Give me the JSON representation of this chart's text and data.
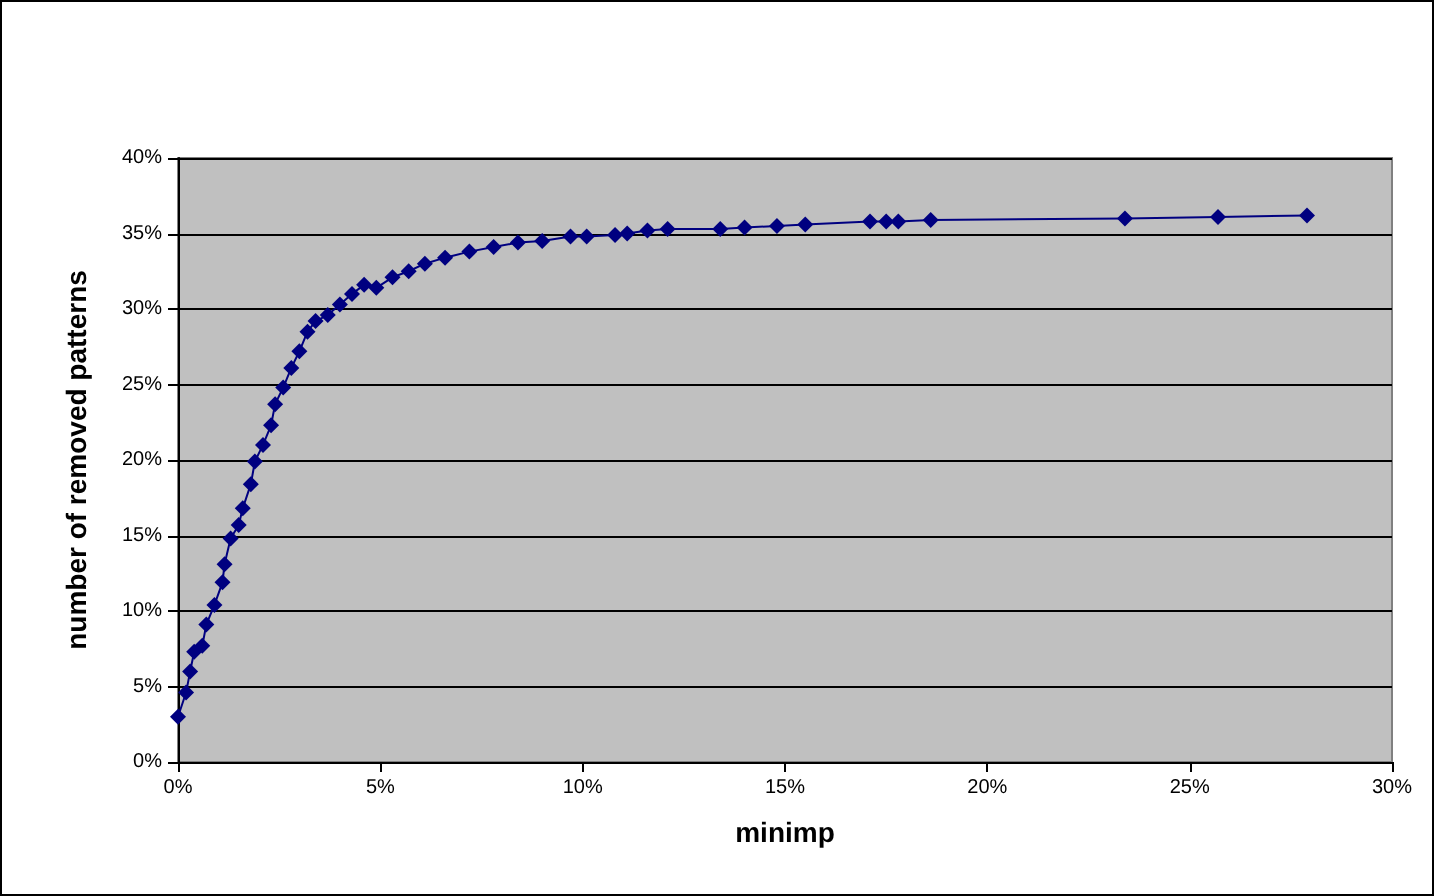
{
  "chart_data": {
    "type": "line",
    "xlabel": "minimp",
    "ylabel": "number of removed patterns",
    "x": [
      0,
      0.2,
      0.3,
      0.4,
      0.6,
      0.7,
      0.9,
      1.1,
      1.15,
      1.3,
      1.5,
      1.6,
      1.8,
      1.9,
      2.1,
      2.3,
      2.4,
      2.6,
      2.8,
      3.0,
      3.2,
      3.4,
      3.7,
      4.0,
      4.3,
      4.6,
      4.9,
      5.3,
      5.7,
      6.1,
      6.6,
      7.2,
      7.8,
      8.4,
      9.0,
      9.7,
      10.1,
      10.8,
      11.1,
      11.6,
      12.1,
      13.4,
      14.0,
      14.8,
      15.5,
      17.1,
      17.5,
      17.8,
      18.6,
      23.4,
      25.7,
      27.9
    ],
    "series": [
      {
        "color": "#000080",
        "values": [
          3.0,
          4.6,
          6.0,
          7.3,
          7.7,
          9.1,
          10.4,
          11.9,
          13.1,
          14.8,
          15.7,
          16.8,
          18.4,
          19.9,
          21.0,
          22.3,
          23.7,
          24.8,
          26.1,
          27.2,
          28.5,
          29.2,
          29.6,
          30.3,
          31.0,
          31.6,
          31.4,
          32.1,
          32.5,
          33.0,
          33.4,
          33.8,
          34.1,
          34.4,
          34.5,
          34.8,
          34.8,
          34.9,
          35.0,
          35.2,
          35.3,
          35.3,
          35.4,
          35.5,
          35.6,
          35.8,
          35.8,
          35.8,
          35.9,
          36.0,
          36.1,
          36.2
        ]
      }
    ],
    "xlim": [
      0,
      30
    ],
    "ylim": [
      0,
      40
    ],
    "xticks": [
      {
        "value": 0,
        "label": "0%"
      },
      {
        "value": 5,
        "label": "5%"
      },
      {
        "value": 10,
        "label": "10%"
      },
      {
        "value": 15,
        "label": "15%"
      },
      {
        "value": 20,
        "label": "20%"
      },
      {
        "value": 25,
        "label": "25%"
      },
      {
        "value": 30,
        "label": "30%"
      }
    ],
    "yticks": [
      {
        "value": 0,
        "label": "0%"
      },
      {
        "value": 5,
        "label": "5%"
      },
      {
        "value": 10,
        "label": "10%"
      },
      {
        "value": 15,
        "label": "15%"
      },
      {
        "value": 20,
        "label": "20%"
      },
      {
        "value": 25,
        "label": "25%"
      },
      {
        "value": 30,
        "label": "30%"
      },
      {
        "value": 35,
        "label": "35%"
      },
      {
        "value": 40,
        "label": "40%"
      }
    ],
    "grid": "y",
    "marker": "diamond",
    "line_style": "solid"
  }
}
